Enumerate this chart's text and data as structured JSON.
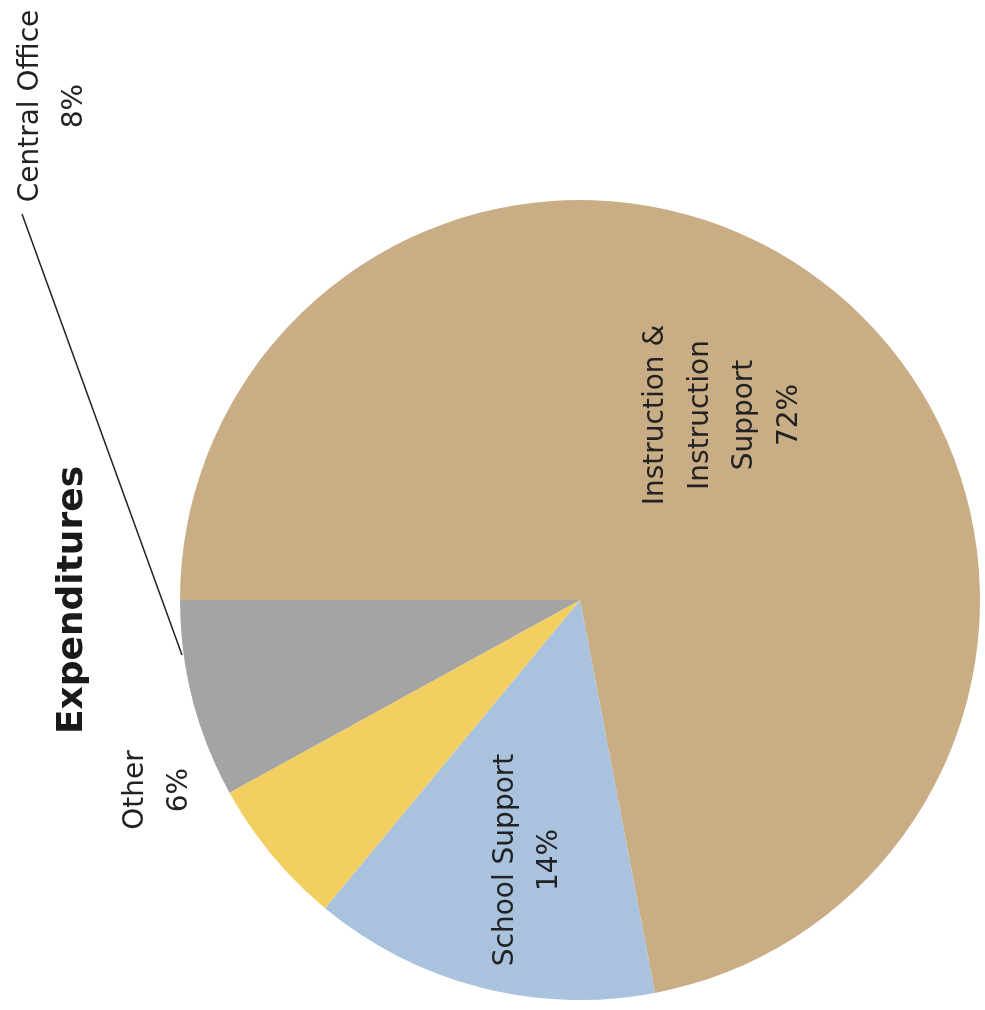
{
  "chart_data": {
    "type": "pie",
    "title": "Expenditures",
    "categories": [
      "Instruction & Instruction Support",
      "School Support",
      "Other",
      "Central Office"
    ],
    "values": [
      72,
      14,
      6,
      8
    ],
    "value_labels": [
      "72%",
      "14%",
      "6%",
      "8%"
    ],
    "colors": [
      "#c9ad84",
      "#a9c2dd",
      "#f2cf60",
      "#a4a4a4"
    ]
  }
}
